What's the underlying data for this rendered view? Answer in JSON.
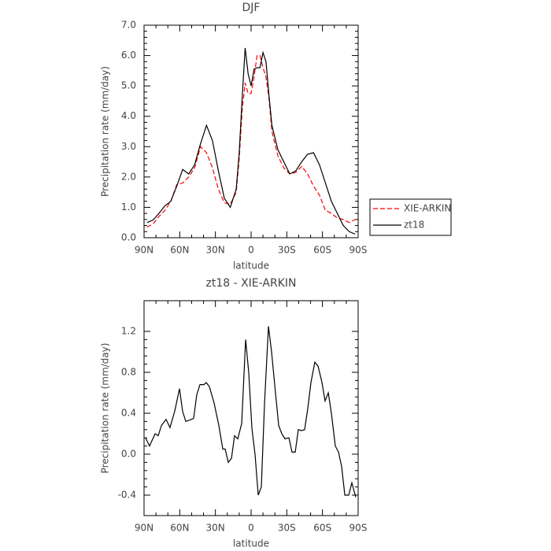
{
  "chart_data": [
    {
      "type": "line",
      "title": "DJF",
      "xlabel": "latitude",
      "ylabel": "Precipitation rate (mm/day)",
      "x": [
        87.5,
        82.5,
        77.5,
        72.5,
        67.5,
        62.5,
        57.5,
        52.5,
        47.5,
        42.5,
        37.5,
        32.5,
        27.5,
        22.5,
        17.5,
        12.5,
        10,
        7.5,
        5,
        2.5,
        0,
        -2.5,
        -5,
        -7.5,
        -10,
        -12.5,
        -15,
        -17.5,
        -22.5,
        -27.5,
        -32.5,
        -37.5,
        -42.5,
        -47.5,
        -52.5,
        -57.5,
        -62.5,
        -67.5,
        -72.5,
        -77.5,
        -82.5,
        -87.5
      ],
      "series": [
        {
          "name": "XIE-ARKIN",
          "color": "#ff0000",
          "linestyle": "dashed",
          "values": [
            0.35,
            0.45,
            0.7,
            0.9,
            1.2,
            1.75,
            1.8,
            2.0,
            2.3,
            3.0,
            2.8,
            2.3,
            1.6,
            1.15,
            1.1,
            1.5,
            2.6,
            4.2,
            5.1,
            4.75,
            4.75,
            5.3,
            6.0,
            6.0,
            5.6,
            5.3,
            4.6,
            3.5,
            2.7,
            2.3,
            2.1,
            2.15,
            2.35,
            2.1,
            1.7,
            1.4,
            0.9,
            0.8,
            0.65,
            0.6,
            0.5,
            0.6
          ]
        },
        {
          "name": "zt18",
          "color": "#000000",
          "linestyle": "solid",
          "values": [
            0.5,
            0.58,
            0.8,
            1.05,
            1.2,
            1.7,
            2.25,
            2.1,
            2.4,
            3.1,
            3.7,
            3.2,
            2.2,
            1.3,
            1.0,
            1.6,
            2.8,
            4.6,
            6.25,
            5.4,
            5.0,
            5.55,
            5.6,
            5.6,
            6.1,
            5.8,
            4.7,
            3.7,
            2.9,
            2.5,
            2.1,
            2.2,
            2.5,
            2.75,
            2.8,
            2.4,
            1.8,
            1.2,
            0.8,
            0.4,
            0.2,
            0.12
          ]
        }
      ],
      "xlim": [
        90,
        -90
      ],
      "xticks": [
        {
          "value": 90,
          "label": "90N"
        },
        {
          "value": 60,
          "label": "60N"
        },
        {
          "value": 30,
          "label": "30N"
        },
        0,
        {
          "value": -30,
          "label": "30S"
        },
        {
          "value": -60,
          "label": "60S"
        },
        {
          "value": -90,
          "label": "90S"
        }
      ],
      "ylim": [
        0,
        7
      ],
      "yticks": [
        {
          "value": 0,
          "label": "0.0"
        },
        {
          "value": 1,
          "label": "1.0"
        },
        {
          "value": 2,
          "label": "2.0"
        },
        {
          "value": 3,
          "label": "3.0"
        },
        {
          "value": 4,
          "label": "4.0"
        },
        {
          "value": 5,
          "label": "5.0"
        },
        {
          "value": 6,
          "label": "6.0"
        },
        {
          "value": 7,
          "label": "7.0"
        }
      ],
      "legend": "right"
    },
    {
      "type": "line",
      "title": "zt18 - XIE-ARKIN",
      "xlabel": "latitude",
      "ylabel": "Precipitation rate (mm/day)",
      "x": [
        88.7,
        85.4,
        80.7,
        78.1,
        75.4,
        71.5,
        68.2,
        64.2,
        60.2,
        57.6,
        54.9,
        50.3,
        48.3,
        45.7,
        43,
        39.7,
        37.7,
        35.1,
        31.1,
        27.1,
        23.8,
        21.8,
        19.2,
        16.5,
        13.9,
        11.2,
        7.9,
        4.6,
        2,
        -0.7,
        -3.3,
        -6,
        -8.6,
        -11.3,
        -14.6,
        -17.2,
        -20.5,
        -23.2,
        -25.8,
        -28.5,
        -31.8,
        -34.4,
        -37.1,
        -39.7,
        -42.4,
        -45,
        -47.7,
        -50.3,
        -53.6,
        -56.3,
        -59.6,
        -62.2,
        -64.9,
        -67.5,
        -70.8,
        -73.5,
        -76.1,
        -78.8,
        -82.1,
        -84.7,
        -88
      ],
      "series": [
        {
          "color": "#000000",
          "linestyle": "solid",
          "values": [
            0.16,
            0.08,
            0.2,
            0.18,
            0.28,
            0.34,
            0.26,
            0.42,
            0.64,
            0.42,
            0.32,
            0.34,
            0.35,
            0.58,
            0.68,
            0.68,
            0.7,
            0.66,
            0.5,
            0.28,
            0.05,
            0.05,
            -0.08,
            -0.04,
            0.18,
            0.15,
            0.3,
            1.12,
            0.8,
            0.25,
            0.0,
            -0.4,
            -0.32,
            0.5,
            1.25,
            1.0,
            0.6,
            0.28,
            0.2,
            0.15,
            0.16,
            0.02,
            0.02,
            0.24,
            0.23,
            0.24,
            0.45,
            0.7,
            0.9,
            0.86,
            0.7,
            0.52,
            0.6,
            0.4,
            0.08,
            0.02,
            -0.12,
            -0.4,
            -0.4,
            -0.28,
            -0.42
          ]
        }
      ],
      "xlim": [
        90,
        -90
      ],
      "xticks": [
        {
          "value": 90,
          "label": "90N"
        },
        {
          "value": 60,
          "label": "60N"
        },
        {
          "value": 30,
          "label": "30N"
        },
        0,
        {
          "value": -30,
          "label": "30S"
        },
        {
          "value": -60,
          "label": "60S"
        },
        {
          "value": -90,
          "label": "90S"
        }
      ],
      "ylim": [
        -0.6,
        1.5
      ],
      "yticks": [
        -0.4,
        {
          "value": 0,
          "label": "0.0"
        },
        0.4,
        0.8,
        1.2
      ]
    }
  ]
}
